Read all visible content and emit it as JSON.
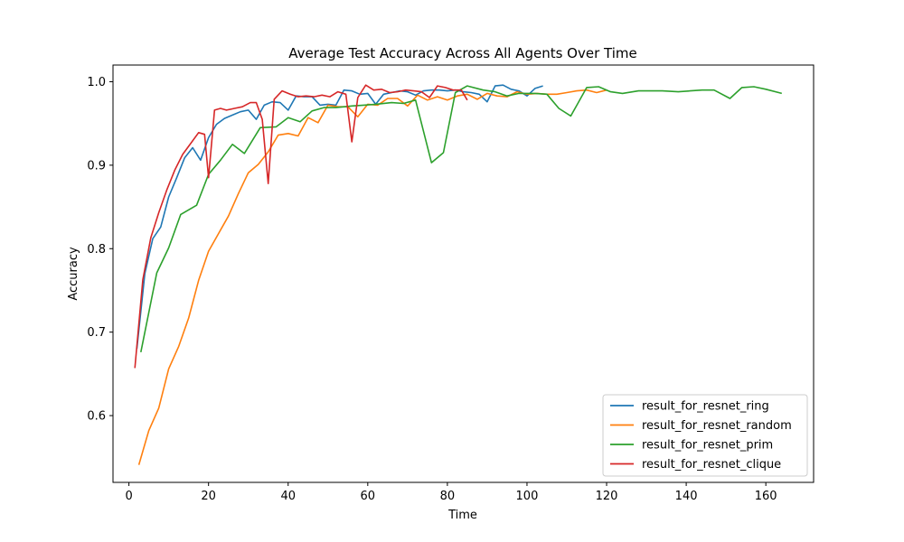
{
  "chart_data": {
    "type": "line",
    "title": "Average Test Accuracy Across All Agents Over Time",
    "xlabel": "Time",
    "ylabel": "Accuracy",
    "xlim": [
      -4,
      172
    ],
    "ylim": [
      0.52,
      1.02
    ],
    "xticks": [
      0,
      20,
      40,
      60,
      80,
      100,
      120,
      140,
      160
    ],
    "yticks": [
      0.6,
      0.7,
      0.8,
      0.9,
      1.0
    ],
    "ytick_labels": [
      "0.6",
      "0.7",
      "0.8",
      "0.9",
      "1.0"
    ],
    "grid": false,
    "legend": "bottom-right",
    "series": [
      {
        "name": "result_for_resnet_ring",
        "color": "#1f77b4",
        "x": [
          2,
          4,
          6,
          8,
          10,
          12,
          14,
          16,
          18,
          20,
          22,
          24,
          26,
          28,
          30,
          32,
          34,
          36,
          38,
          40,
          42,
          44,
          46,
          48,
          50,
          52,
          54,
          56,
          58,
          60,
          62,
          64,
          66,
          68,
          70,
          72,
          74,
          76,
          78,
          80,
          82,
          84,
          86,
          88,
          90,
          92,
          94,
          96,
          98,
          100,
          102,
          104
        ],
        "y": [
          0.68,
          0.77,
          0.812,
          0.826,
          0.862,
          0.885,
          0.909,
          0.921,
          0.906,
          0.933,
          0.949,
          0.956,
          0.96,
          0.964,
          0.966,
          0.955,
          0.972,
          0.976,
          0.975,
          0.966,
          0.983,
          0.982,
          0.982,
          0.972,
          0.973,
          0.972,
          0.99,
          0.989,
          0.985,
          0.986,
          0.973,
          0.985,
          0.987,
          0.989,
          0.988,
          0.984,
          0.989,
          0.99,
          0.99,
          0.989,
          0.99,
          0.988,
          0.987,
          0.985,
          0.976,
          0.995,
          0.996,
          0.991,
          0.989,
          0.983,
          0.992,
          0.995
        ]
      },
      {
        "name": "result_for_resnet_random",
        "color": "#ff7f0e",
        "x": [
          2.5,
          5,
          7.5,
          10,
          12.5,
          15,
          17.5,
          20,
          22.5,
          25,
          27.5,
          30,
          32.5,
          35,
          37.5,
          40,
          42.5,
          45,
          47.5,
          50,
          52.5,
          55,
          57.5,
          60,
          62.5,
          65,
          67.5,
          70,
          72.5,
          75,
          77.5,
          80,
          82.5,
          85,
          87.5,
          90,
          92.5,
          95,
          97.5,
          100,
          102.5,
          105,
          107.5,
          110,
          112.5,
          115,
          117.5,
          120
        ],
        "y": [
          0.541,
          0.582,
          0.609,
          0.656,
          0.683,
          0.717,
          0.762,
          0.797,
          0.818,
          0.839,
          0.866,
          0.891,
          0.901,
          0.916,
          0.936,
          0.938,
          0.935,
          0.957,
          0.951,
          0.972,
          0.97,
          0.97,
          0.958,
          0.973,
          0.972,
          0.98,
          0.98,
          0.971,
          0.984,
          0.978,
          0.982,
          0.978,
          0.983,
          0.985,
          0.979,
          0.986,
          0.983,
          0.982,
          0.988,
          0.985,
          0.986,
          0.985,
          0.985,
          0.987,
          0.989,
          0.99,
          0.987,
          0.99
        ]
      },
      {
        "name": "result_for_resnet_prim",
        "color": "#2ca02c",
        "x": [
          3,
          7,
          10,
          13,
          17,
          20,
          23,
          26,
          29,
          33,
          37,
          40,
          43,
          46,
          49,
          52,
          56,
          59,
          62,
          66,
          69,
          72,
          76,
          79,
          82,
          85,
          89,
          92,
          95,
          98,
          102,
          105,
          108,
          111,
          115,
          118,
          121,
          124,
          128,
          131,
          134,
          138,
          141,
          144,
          147,
          151,
          154,
          157,
          160,
          164
        ],
        "y": [
          0.676,
          0.771,
          0.801,
          0.841,
          0.852,
          0.889,
          0.906,
          0.925,
          0.914,
          0.945,
          0.946,
          0.957,
          0.952,
          0.965,
          0.969,
          0.969,
          0.971,
          0.972,
          0.973,
          0.975,
          0.974,
          0.978,
          0.903,
          0.915,
          0.987,
          0.995,
          0.99,
          0.988,
          0.983,
          0.986,
          0.986,
          0.985,
          0.968,
          0.959,
          0.993,
          0.994,
          0.988,
          0.986,
          0.989,
          0.989,
          0.989,
          0.988,
          0.989,
          0.99,
          0.99,
          0.98,
          0.993,
          0.994,
          0.991,
          0.986
        ]
      },
      {
        "name": "result_for_resnet_clique",
        "color": "#d62728",
        "x": [
          1.5,
          3.5,
          5.5,
          7.5,
          9.5,
          11.5,
          13.5,
          15.5,
          17.5,
          19,
          20,
          21.5,
          23,
          24.5,
          26.5,
          28.5,
          30.5,
          32,
          33.5,
          35,
          36.5,
          38.5,
          40.5,
          42.5,
          44.5,
          46.5,
          48.5,
          50.5,
          52.5,
          54.5,
          56,
          57.5,
          59.5,
          61.5,
          63.5,
          65.5,
          67.5,
          69.5,
          71.5,
          73.5,
          75.5,
          77.5,
          79.5,
          81.5,
          83.5,
          85
        ],
        "y": [
          0.657,
          0.763,
          0.813,
          0.843,
          0.87,
          0.894,
          0.913,
          0.926,
          0.939,
          0.937,
          0.885,
          0.966,
          0.968,
          0.966,
          0.968,
          0.97,
          0.975,
          0.975,
          0.955,
          0.878,
          0.979,
          0.989,
          0.985,
          0.982,
          0.983,
          0.982,
          0.984,
          0.982,
          0.988,
          0.985,
          0.928,
          0.981,
          0.996,
          0.99,
          0.991,
          0.987,
          0.988,
          0.99,
          0.989,
          0.988,
          0.981,
          0.995,
          0.993,
          0.99,
          0.99,
          0.978
        ]
      }
    ]
  }
}
